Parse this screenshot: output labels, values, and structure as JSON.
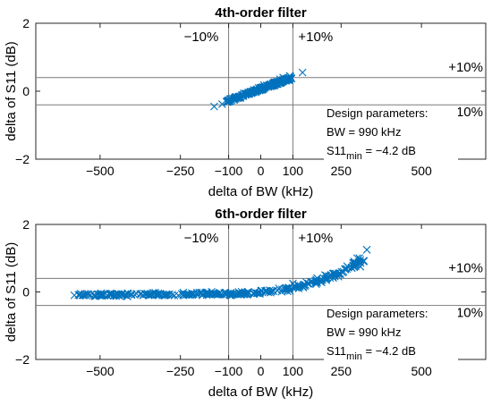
{
  "chart_data": [
    {
      "type": "scatter",
      "title": "4th-order filter",
      "xlabel": "delta of BW (kHz)",
      "ylabel": "delta of S11 (dB)",
      "xlim": [
        -700,
        700
      ],
      "ylim": [
        -2,
        2
      ],
      "xticks": [
        "-500",
        "-250",
        "-100",
        "0",
        "100",
        "250",
        "500"
      ],
      "xtick_values": [
        -500,
        -250,
        -100,
        0,
        100,
        250,
        500
      ],
      "yticks": [
        "-2",
        "0",
        "2"
      ],
      "ytick_values": [
        -2,
        0,
        2
      ],
      "marker": "x",
      "color": "#0072BD",
      "ref_lines": {
        "x": [
          -100,
          100
        ],
        "y": [
          -0.4,
          0.4
        ]
      },
      "annotations": {
        "minus_bw": "−10%",
        "plus_bw": "+10%",
        "plus_s11": "+10%",
        "minus_s11": "−10%"
      },
      "design_box": {
        "heading": "Design parameters:",
        "bw": "BW = 990 kHz",
        "s11_prefix": "S11",
        "s11_sub": "min",
        "s11_value": " = −4.2 dB"
      },
      "cloud": {
        "x_range": [
          -140,
          120
        ],
        "y_at_xmin": -0.42,
        "y_at_xmax": 0.48,
        "noise": 0.06,
        "count": 220
      },
      "series": [
        {
          "x": [
            -145,
            -120,
            -105,
            10,
            60,
            70,
            130,
            90
          ],
          "y": [
            -0.45,
            -0.38,
            -0.3,
            0.18,
            0.35,
            0.4,
            0.55,
            0.45
          ]
        }
      ]
    },
    {
      "type": "scatter",
      "title": "6th-order filter",
      "xlabel": "delta of BW (kHz)",
      "ylabel": "delta of S11 (dB)",
      "xlim": [
        -700,
        700
      ],
      "ylim": [
        -2,
        2
      ],
      "xticks": [
        "-500",
        "-250",
        "-100",
        "0",
        "100",
        "250",
        "500"
      ],
      "xtick_values": [
        -500,
        -250,
        -100,
        0,
        100,
        250,
        500
      ],
      "yticks": [
        "-2",
        "0",
        "2"
      ],
      "ytick_values": [
        -2,
        0,
        2
      ],
      "marker": "x",
      "color": "#0072BD",
      "ref_lines": {
        "x": [
          -100,
          100
        ],
        "y": [
          -0.4,
          0.4
        ]
      },
      "annotations": {
        "minus_bw": "−10%",
        "plus_bw": "+10%",
        "plus_s11": "+10%",
        "minus_s11": "−10%"
      },
      "design_box": {
        "heading": "Design parameters:",
        "bw": "BW = 990 kHz",
        "s11_prefix": "S11",
        "s11_sub": "min",
        "s11_value": " = −4.2 dB"
      },
      "cloud": {
        "x_range": [
          -570,
          330
        ],
        "noise": 0.07,
        "count": 300
      },
      "series": [
        {
          "x": [
            -580,
            -560,
            -450,
            -300,
            -200,
            100,
            200,
            300,
            330,
            320,
            310
          ],
          "y": [
            -0.1,
            -0.05,
            -0.12,
            -0.1,
            -0.08,
            0.25,
            0.5,
            1.0,
            1.25,
            0.9,
            0.75
          ]
        }
      ]
    }
  ]
}
